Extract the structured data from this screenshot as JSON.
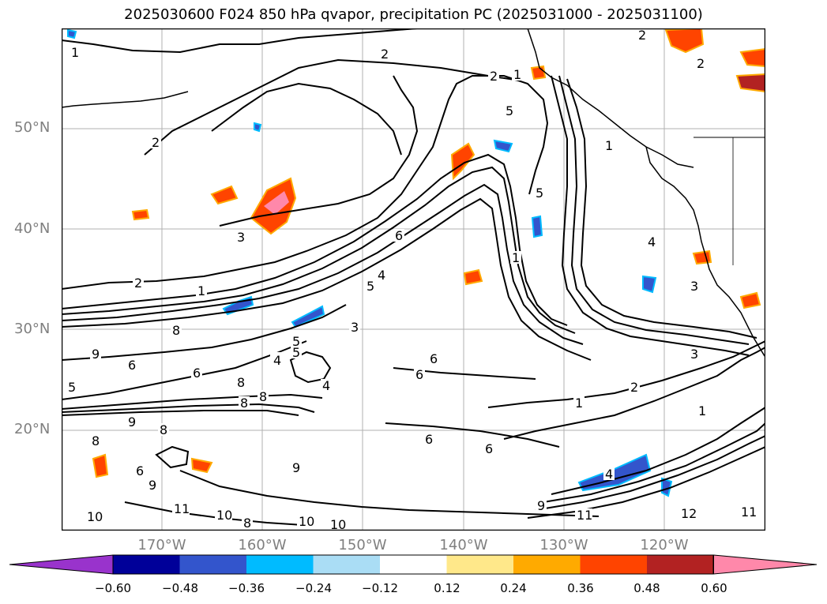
{
  "title": "2025030600 F024 850 hPa qvapor, precipitation PC (2025031000 - 2025031100)",
  "map": {
    "lat_labels": [
      "50°N",
      "40°N",
      "30°N",
      "20°N"
    ],
    "lon_labels": [
      "170°W",
      "160°W",
      "150°W",
      "140°W",
      "130°W",
      "120°W"
    ],
    "lat_range": [
      10,
      60
    ],
    "lon_range": [
      -180,
      -110
    ],
    "grid": true,
    "contour_labels": [
      "1",
      "2",
      "2",
      "2",
      "2",
      "3",
      "1",
      "2",
      "1",
      "3",
      "6",
      "4",
      "5",
      "1",
      "1",
      "5",
      "5",
      "1",
      "2",
      "4",
      "5",
      "4",
      "3",
      "8",
      "8",
      "9",
      "6",
      "5",
      "5",
      "4",
      "4",
      "6",
      "6",
      "6",
      "6",
      "8",
      "8",
      "6",
      "9",
      "8",
      "8",
      "9",
      "10",
      "6",
      "11",
      "10",
      "9",
      "8",
      "10",
      "10",
      "11",
      "12",
      "11",
      "9",
      "4",
      "3",
      "2",
      "1"
    ]
  },
  "colorbar": {
    "ticks": [
      "−0.60",
      "−0.48",
      "−0.36",
      "−0.24",
      "−0.12",
      "0.12",
      "0.24",
      "0.36",
      "0.48",
      "0.60"
    ],
    "colors": [
      "#9933cc",
      "#000099",
      "#3355cc",
      "#00bbff",
      "#aaddf5",
      "#ffffff",
      "#ffe88a",
      "#ffaa00",
      "#ff4400",
      "#b22222",
      "#ff88aa"
    ]
  }
}
